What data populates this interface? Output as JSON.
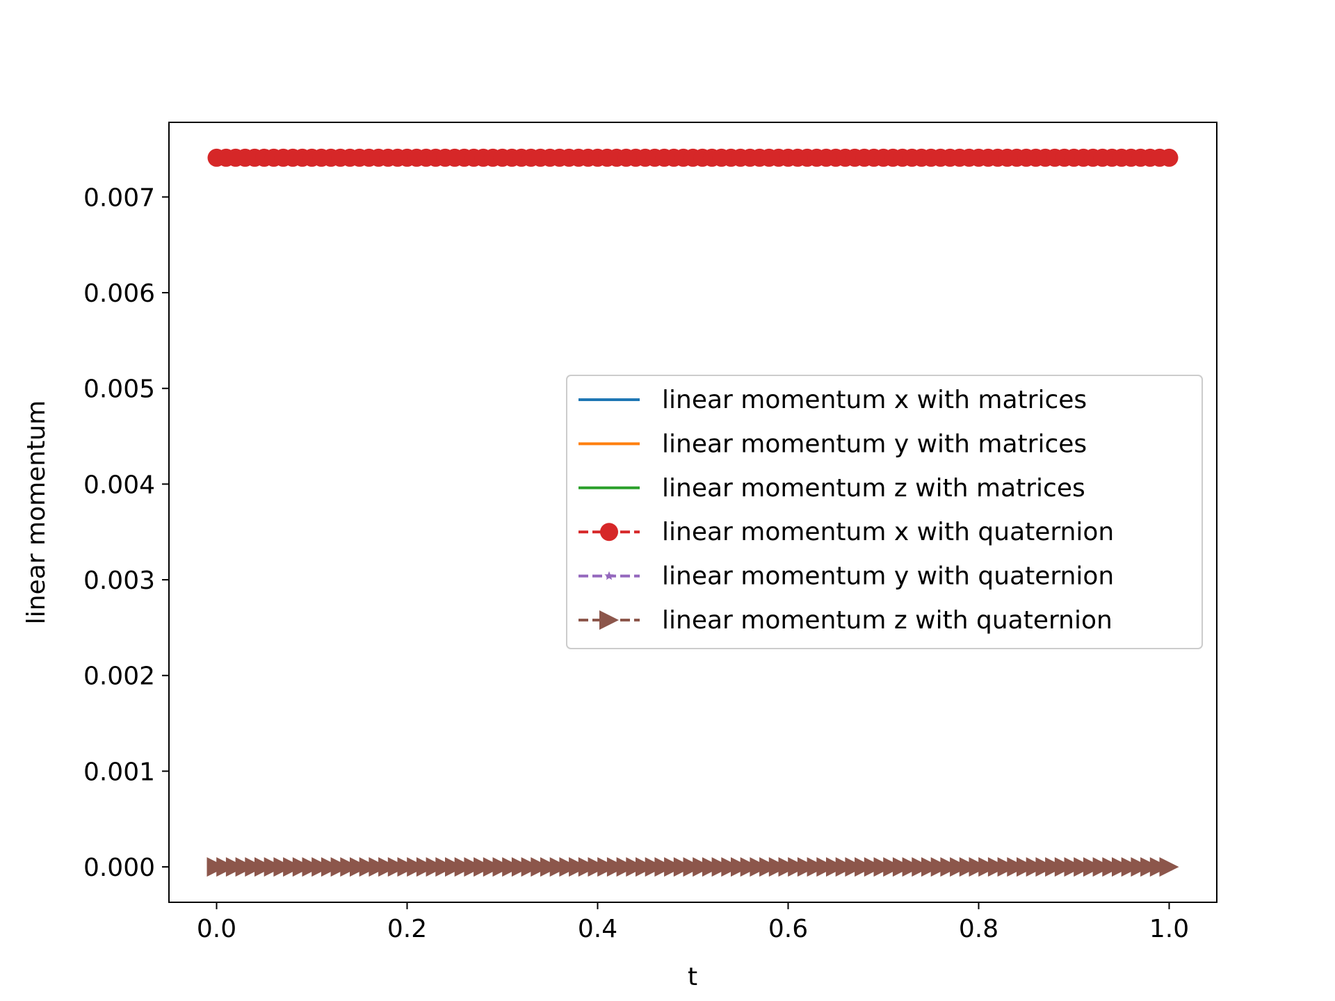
{
  "chart_data": {
    "type": "line",
    "title": "",
    "xlabel": "t",
    "ylabel": "linear momentum",
    "xlim": [
      -0.05,
      1.05
    ],
    "ylim": [
      -0.00037,
      0.00778
    ],
    "x_ticks": [
      0.0,
      0.2,
      0.4,
      0.6,
      0.8,
      1.0
    ],
    "x_tick_labels": [
      "0.0",
      "0.2",
      "0.4",
      "0.6",
      "0.8",
      "1.0"
    ],
    "y_ticks": [
      0.0,
      0.001,
      0.002,
      0.003,
      0.004,
      0.005,
      0.006,
      0.007
    ],
    "y_tick_labels": [
      "0.000",
      "0.001",
      "0.002",
      "0.003",
      "0.004",
      "0.005",
      "0.006",
      "0.007"
    ],
    "x": {
      "start": 0.0,
      "stop": 1.0,
      "count": 101
    },
    "grid": false,
    "legend_position": "center-right",
    "series": [
      {
        "name": "linear momentum x with matrices",
        "value": 0.00741,
        "color": "#1f77b4",
        "linestyle": "solid",
        "marker": "none"
      },
      {
        "name": "linear momentum y with matrices",
        "value": 0.0,
        "color": "#ff7f0e",
        "linestyle": "solid",
        "marker": "none"
      },
      {
        "name": "linear momentum z with matrices",
        "value": 0.0,
        "color": "#2ca02c",
        "linestyle": "solid",
        "marker": "none"
      },
      {
        "name": "linear momentum x with quaternion",
        "value": 0.00741,
        "color": "#d62728",
        "linestyle": "dashed",
        "marker": "circle"
      },
      {
        "name": "linear momentum y with quaternion",
        "value": 0.0,
        "color": "#9467bd",
        "linestyle": "dashed",
        "marker": "star"
      },
      {
        "name": "linear momentum z with quaternion",
        "value": 0.0,
        "color": "#8c564b",
        "linestyle": "dashed",
        "marker": "triangle-right"
      }
    ]
  }
}
